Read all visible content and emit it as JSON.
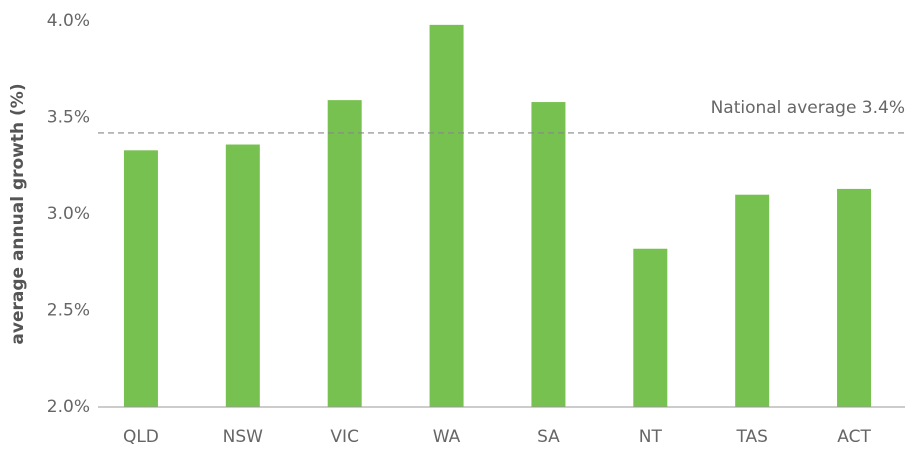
{
  "chart_data": {
    "type": "bar",
    "y_label": "average annual growth (%)",
    "categories": [
      "QLD",
      "NSW",
      "VIC",
      "WA",
      "SA",
      "NT",
      "TAS",
      "ACT"
    ],
    "values": [
      3.33,
      3.36,
      3.59,
      3.98,
      3.58,
      2.82,
      3.1,
      3.13
    ],
    "color": "#77c150",
    "ylim": [
      2.0,
      4.0
    ],
    "yticks": [
      {
        "value": 2.0,
        "label": "2.0%"
      },
      {
        "value": 2.5,
        "label": "2.5%"
      },
      {
        "value": 3.0,
        "label": "3.0%"
      },
      {
        "value": 3.5,
        "label": "3.5%"
      },
      {
        "value": 4.0,
        "label": "4.0%"
      }
    ],
    "reference_line": {
      "value": 3.42,
      "label": "National average 3.4%"
    }
  }
}
